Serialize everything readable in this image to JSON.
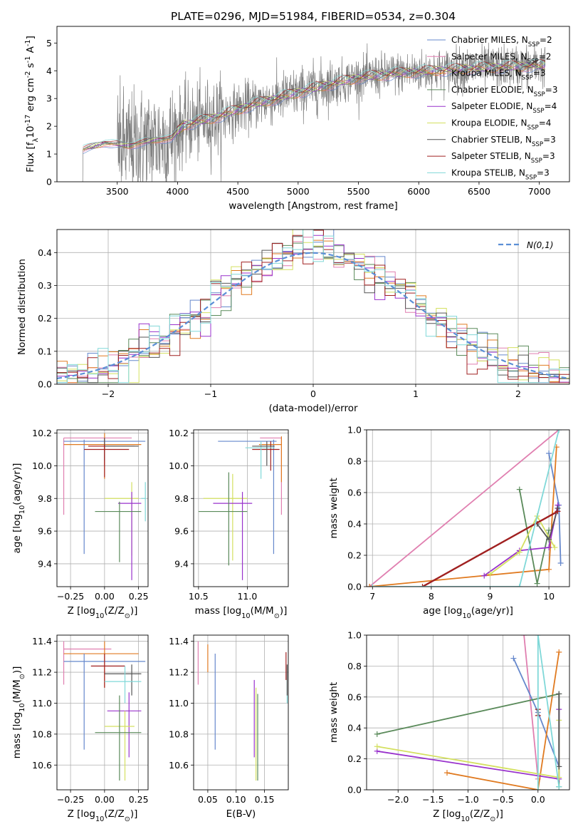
{
  "colors": {
    "C_MILES": "#6688cc",
    "S_MILES": "#e07fb0",
    "K_MILES": "#e07a20",
    "C_ELODIE": "#5a8a5a",
    "S_ELODIE": "#9932cc",
    "K_ELODIE": "#d4e060",
    "C_STELIB": "#555555",
    "S_STELIB": "#a02020",
    "K_STELIB": "#80d8d8",
    "data": "#7f7f7f",
    "normal": "#5b8fd6"
  },
  "chart_data": [
    {
      "id": "spectrum",
      "type": "line",
      "title": "PLATE=0296, MJD=51984, FIBERID=0534, z=0.304",
      "xlabel": "wavelength [Angstrom, rest frame]",
      "ylabel": "Flux [f$_\\lambda$10$^{-17}$ erg cm$^{-2}$ s$^{-1}$ A$^{-1}$]",
      "xlim": [
        3000,
        7250
      ],
      "ylim": [
        0,
        5.6
      ],
      "xticks": [
        3500,
        4000,
        4500,
        5000,
        5500,
        6000,
        6500,
        7000
      ],
      "yticks": [
        0,
        1,
        2,
        3,
        4,
        5
      ],
      "legend_position": "upper right",
      "series": [
        {
          "key": "C_MILES",
          "name": "Chabrier MILES, N$_{SSP}$=2"
        },
        {
          "key": "S_MILES",
          "name": "Salpeter MILES, N$_{SSP}$=2"
        },
        {
          "key": "K_MILES",
          "name": "Kroupa MILES, N$_{SSP}$=3"
        },
        {
          "key": "C_ELODIE",
          "name": "Chabrier ELODIE, N$_{SSP}$=3"
        },
        {
          "key": "S_ELODIE",
          "name": "Salpeter ELODIE, N$_{SSP}$=4"
        },
        {
          "key": "K_ELODIE",
          "name": "Kroupa ELODIE, N$_{SSP}$=4"
        },
        {
          "key": "C_STELIB",
          "name": "Chabrier STELIB, N$_{SSP}$=3"
        },
        {
          "key": "S_STELIB",
          "name": "Salpeter STELIB, N$_{SSP}$=3"
        },
        {
          "key": "K_STELIB",
          "name": "Kroupa STELIB, N$_{SSP}$=3"
        }
      ],
      "data_range": [
        3205,
        7050
      ],
      "continuum": [
        [
          3205,
          1.15
        ],
        [
          3400,
          1.4
        ],
        [
          3600,
          1.3
        ],
        [
          3800,
          1.5
        ],
        [
          3950,
          1.55
        ],
        [
          4050,
          2.05
        ],
        [
          4300,
          2.3
        ],
        [
          4600,
          2.75
        ],
        [
          4900,
          3.1
        ],
        [
          5200,
          3.45
        ],
        [
          5500,
          3.75
        ],
        [
          5800,
          3.9
        ],
        [
          6100,
          4.0
        ],
        [
          6500,
          4.1
        ],
        [
          7050,
          4.2
        ]
      ]
    },
    {
      "id": "residuals",
      "type": "histogram",
      "xlabel": "(data-model)/error",
      "ylabel": "Normed distribution",
      "xlim": [
        -2.5,
        2.5
      ],
      "ylim": [
        0,
        0.47
      ],
      "xticks": [
        -2,
        -1,
        0,
        1,
        2
      ],
      "yticks": [
        0.0,
        0.1,
        0.2,
        0.3,
        0.4
      ],
      "grid": true,
      "legend_position": "upper right",
      "legend": "$\\mathcal{N}(0,1)$",
      "bin_width": 0.1
    },
    {
      "id": "age_vs_Z",
      "type": "errorbar",
      "xlabel": "Z [log$_{10}$(Z/Z$_\\odot$)]",
      "ylabel": "age  [log$_{10}$(age/yr)]",
      "xlim": [
        -0.35,
        0.32
      ],
      "ylim": [
        9.26,
        10.22
      ],
      "xticks": [
        -0.25,
        0.0,
        0.25
      ],
      "yticks": [
        9.4,
        9.6,
        9.8,
        10.0,
        10.2
      ],
      "grid": true,
      "points": [
        {
          "key": "S_MILES",
          "x": -0.3,
          "y": 10.17,
          "xlo": -0.3,
          "xhi": 0.2,
          "ylo": 9.7,
          "yhi": 10.17
        },
        {
          "key": "C_MILES",
          "x": -0.15,
          "y": 10.15,
          "xlo": -0.3,
          "xhi": 0.3,
          "ylo": 9.46,
          "yhi": 10.16
        },
        {
          "key": "K_MILES",
          "x": 0.0,
          "y": 10.13,
          "xlo": -0.3,
          "xhi": 0.27,
          "ylo": 9.92,
          "yhi": 10.2
        },
        {
          "key": "S_STELIB",
          "x": 0.0,
          "y": 10.12,
          "xlo": -0.12,
          "xhi": 0.22,
          "ylo": 9.93,
          "yhi": 10.17
        },
        {
          "key": "C_STELIB",
          "x": 0.0,
          "y": 10.12,
          "xlo": 0.0,
          "xhi": 0.25,
          "ylo": 10.03,
          "yhi": 10.17
        },
        {
          "key": "S_STELIB",
          "x": 0.0,
          "y": 10.1,
          "xlo": -0.15,
          "xhi": 0.18,
          "ylo": 10.0,
          "yhi": 10.13
        },
        {
          "key": "K_ELODIE",
          "x": 0.2,
          "y": 9.8,
          "xlo": 0.0,
          "xhi": 0.25,
          "ylo": 9.45,
          "yhi": 9.9
        },
        {
          "key": "S_ELODIE",
          "x": 0.2,
          "y": 9.77,
          "xlo": 0.1,
          "xhi": 0.27,
          "ylo": 9.3,
          "yhi": 9.84
        },
        {
          "key": "C_ELODIE",
          "x": 0.11,
          "y": 9.72,
          "xlo": -0.07,
          "xhi": 0.27,
          "ylo": 9.41,
          "yhi": 9.78
        },
        {
          "key": "K_STELIB",
          "x": 0.3,
          "y": 9.8,
          "xlo": 0.27,
          "xhi": 0.3,
          "ylo": 9.66,
          "yhi": 9.9
        }
      ]
    },
    {
      "id": "age_vs_mass",
      "type": "errorbar",
      "xlabel": "mass [log$_{10}$(M/M$_\\odot$)]",
      "ylabel": "",
      "xlim": [
        10.45,
        11.42
      ],
      "ylim": [
        9.26,
        10.22
      ],
      "xticks": [
        10.5,
        11.0
      ],
      "yticks": [
        9.4,
        9.6,
        9.8,
        10.0,
        10.2
      ],
      "grid": true,
      "points": [
        {
          "key": "S_MILES",
          "x": 11.35,
          "y": 10.17,
          "xlo": 11.13,
          "xhi": 11.35,
          "ylo": 9.7,
          "yhi": 10.17
        },
        {
          "key": "C_MILES",
          "x": 11.27,
          "y": 10.15,
          "xlo": 10.7,
          "xhi": 11.3,
          "ylo": 9.46,
          "yhi": 10.16
        },
        {
          "key": "K_MILES",
          "x": 11.35,
          "y": 10.13,
          "xlo": 11.12,
          "xhi": 11.35,
          "ylo": 9.9,
          "yhi": 10.18
        },
        {
          "key": "S_STELIB",
          "x": 11.24,
          "y": 10.1,
          "xlo": 11.05,
          "xhi": 11.33,
          "ylo": 9.97,
          "yhi": 10.15
        },
        {
          "key": "K_STELIB",
          "x": 11.14,
          "y": 10.11,
          "xlo": 10.98,
          "xhi": 11.28,
          "ylo": 9.92,
          "yhi": 10.15
        },
        {
          "key": "C_STELIB",
          "x": 11.2,
          "y": 10.12,
          "xlo": 11.05,
          "xhi": 11.28,
          "ylo": 10.0,
          "yhi": 10.15
        },
        {
          "key": "K_ELODIE",
          "x": 10.85,
          "y": 9.8,
          "xlo": 10.55,
          "xhi": 11.0,
          "ylo": 9.42,
          "yhi": 9.95
        },
        {
          "key": "S_ELODIE",
          "x": 10.95,
          "y": 9.77,
          "xlo": 10.65,
          "xhi": 11.05,
          "ylo": 9.3,
          "yhi": 9.84
        },
        {
          "key": "C_ELODIE",
          "x": 10.81,
          "y": 9.72,
          "xlo": 10.5,
          "xhi": 11.0,
          "ylo": 9.39,
          "yhi": 9.96
        }
      ]
    },
    {
      "id": "massweight_vs_age",
      "type": "line",
      "xlabel": "age  [log$_{10}$(age/yr)]",
      "ylabel": "mass weight",
      "xlim": [
        6.9,
        10.35
      ],
      "ylim": [
        0,
        1.0
      ],
      "xticks": [
        7,
        8,
        9,
        10
      ],
      "yticks": [
        0.0,
        0.2,
        0.4,
        0.6,
        0.8,
        1.0
      ],
      "grid": true,
      "series": [
        {
          "key": "S_MILES",
          "x": [
            6.95,
            10.17
          ],
          "y": [
            0.0,
            1.0
          ]
        },
        {
          "key": "C_MILES",
          "x": [
            10.0,
            10.17,
            10.2
          ],
          "y": [
            0.85,
            0.52,
            0.15
          ]
        },
        {
          "key": "K_MILES",
          "x": [
            6.95,
            10.0,
            10.13
          ],
          "y": [
            0.0,
            0.11,
            0.89
          ]
        },
        {
          "key": "C_ELODIE",
          "x": [
            9.5,
            9.8,
            10.0
          ],
          "y": [
            0.62,
            0.02,
            0.36
          ]
        },
        {
          "key": "S_ELODIE",
          "x": [
            8.9,
            9.5,
            10.0,
            10.15
          ],
          "y": [
            0.07,
            0.23,
            0.25,
            0.52
          ]
        },
        {
          "key": "K_ELODIE",
          "x": [
            9.0,
            9.5,
            9.8,
            10.1
          ],
          "y": [
            0.08,
            0.22,
            0.45,
            0.25
          ]
        },
        {
          "key": "C_STELIB",
          "x": [
            9.8,
            10.0,
            10.15
          ],
          "y": [
            0.4,
            0.3,
            0.5
          ]
        },
        {
          "key": "S_STELIB",
          "x": [
            7.85,
            10.15
          ],
          "y": [
            0.0,
            0.48
          ]
        },
        {
          "key": "K_STELIB",
          "x": [
            7.0,
            9.5,
            10.17
          ],
          "y": [
            0.0,
            0.0,
            1.0
          ]
        }
      ]
    },
    {
      "id": "mass_vs_Z",
      "type": "errorbar",
      "xlabel": "Z [log$_{10}$(Z/Z$_\\odot$)]",
      "ylabel": "mass [log$_{10}$(M/M$_\\odot$)]",
      "xlim": [
        -0.35,
        0.32
      ],
      "ylim": [
        10.44,
        11.44
      ],
      "xticks": [
        -0.25,
        0.0,
        0.25
      ],
      "yticks": [
        10.6,
        10.8,
        11.0,
        11.2,
        11.4
      ],
      "grid": true,
      "points": [
        {
          "key": "S_MILES",
          "x": -0.3,
          "y": 11.35,
          "xlo": -0.3,
          "xhi": 0.05,
          "ylo": 11.12,
          "yhi": 11.4
        },
        {
          "key": "K_MILES",
          "x": 0.0,
          "y": 11.32,
          "xlo": -0.3,
          "xhi": 0.25,
          "ylo": 11.1,
          "yhi": 11.4
        },
        {
          "key": "C_MILES",
          "x": -0.15,
          "y": 11.27,
          "xlo": -0.3,
          "xhi": 0.3,
          "ylo": 10.7,
          "yhi": 11.32
        },
        {
          "key": "S_STELIB",
          "x": 0.0,
          "y": 11.24,
          "xlo": -0.1,
          "xhi": 0.15,
          "ylo": 11.1,
          "yhi": 11.32
        },
        {
          "key": "C_STELIB",
          "x": 0.2,
          "y": 11.19,
          "xlo": 0.0,
          "xhi": 0.27,
          "ylo": 11.05,
          "yhi": 11.25
        },
        {
          "key": "K_STELIB",
          "x": 0.15,
          "y": 11.14,
          "xlo": 0.0,
          "xhi": 0.27,
          "ylo": 11.0,
          "yhi": 11.24
        },
        {
          "key": "S_ELODIE",
          "x": 0.18,
          "y": 10.95,
          "xlo": 0.02,
          "xhi": 0.27,
          "ylo": 10.65,
          "yhi": 11.07
        },
        {
          "key": "K_ELODIE",
          "x": 0.15,
          "y": 10.85,
          "xlo": 0.0,
          "xhi": 0.22,
          "ylo": 10.5,
          "yhi": 10.95
        },
        {
          "key": "C_ELODIE",
          "x": 0.11,
          "y": 10.81,
          "xlo": -0.07,
          "xhi": 0.27,
          "ylo": 10.5,
          "yhi": 11.05
        }
      ]
    },
    {
      "id": "mass_vs_ebv",
      "type": "errorbar",
      "xlabel": "E(B-V)",
      "ylabel": "",
      "xlim": [
        0.025,
        0.192
      ],
      "ylim": [
        10.44,
        11.44
      ],
      "xticks": [
        0.05,
        0.1,
        0.15
      ],
      "yticks": [
        10.6,
        10.8,
        11.0,
        11.2,
        11.4
      ],
      "grid": true,
      "points": [
        {
          "key": "S_MILES",
          "x": 0.033,
          "y": 11.26,
          "xlo": 0.033,
          "xhi": 0.033,
          "ylo": 11.12,
          "yhi": 11.4
        },
        {
          "key": "K_MILES",
          "x": 0.05,
          "y": 11.3,
          "xlo": 0.05,
          "xhi": 0.05,
          "ylo": 11.2,
          "yhi": 11.38
        },
        {
          "key": "C_MILES",
          "x": 0.063,
          "y": 11.0,
          "xlo": 0.063,
          "xhi": 0.063,
          "ylo": 10.7,
          "yhi": 11.32
        },
        {
          "key": "S_ELODIE",
          "x": 0.132,
          "y": 10.9,
          "xlo": 0.132,
          "xhi": 0.132,
          "ylo": 10.65,
          "yhi": 11.15
        },
        {
          "key": "K_ELODIE",
          "x": 0.135,
          "y": 10.8,
          "xlo": 0.135,
          "xhi": 0.135,
          "ylo": 10.5,
          "yhi": 11.1
        },
        {
          "key": "C_ELODIE",
          "x": 0.138,
          "y": 10.8,
          "xlo": 0.138,
          "xhi": 0.138,
          "ylo": 10.5,
          "yhi": 11.06
        },
        {
          "key": "S_STELIB",
          "x": 0.188,
          "y": 11.24,
          "xlo": 0.188,
          "xhi": 0.188,
          "ylo": 11.15,
          "yhi": 11.33
        },
        {
          "key": "K_STELIB",
          "x": 0.19,
          "y": 11.1,
          "xlo": 0.19,
          "xhi": 0.19,
          "ylo": 11.0,
          "yhi": 11.24
        },
        {
          "key": "C_STELIB",
          "x": 0.19,
          "y": 11.15,
          "xlo": 0.19,
          "xhi": 0.19,
          "ylo": 11.05,
          "yhi": 11.25
        }
      ]
    },
    {
      "id": "massweight_vs_Z",
      "type": "line",
      "xlabel": "Z [log$_{10}$(Z/Z$_\\odot$)]",
      "ylabel": "mass weight",
      "xlim": [
        -2.45,
        0.45
      ],
      "ylim": [
        0,
        1.0
      ],
      "xticks": [
        -2.0,
        -1.5,
        -1.0,
        -0.5,
        0.0
      ],
      "yticks": [
        0.0,
        0.2,
        0.4,
        0.6,
        0.8,
        1.0
      ],
      "grid": true,
      "series": [
        {
          "key": "S_MILES",
          "x": [
            -0.2,
            0.0
          ],
          "y": [
            1.0,
            0.07
          ]
        },
        {
          "key": "C_MILES",
          "x": [
            -0.35,
            0.0,
            0.3
          ],
          "y": [
            0.85,
            0.5,
            0.15
          ]
        },
        {
          "key": "K_MILES",
          "x": [
            -1.3,
            0.0,
            0.3
          ],
          "y": [
            0.11,
            0.0,
            0.89
          ]
        },
        {
          "key": "C_ELODIE",
          "x": [
            -2.3,
            0.3,
            0.3
          ],
          "y": [
            0.36,
            0.62,
            0.02
          ]
        },
        {
          "key": "S_ELODIE",
          "x": [
            -2.3,
            0.3,
            0.3
          ],
          "y": [
            0.25,
            0.07,
            0.52
          ]
        },
        {
          "key": "K_ELODIE",
          "x": [
            -2.3,
            0.3,
            0.3
          ],
          "y": [
            0.28,
            0.08,
            0.45
          ]
        },
        {
          "key": "C_STELIB",
          "x": [
            0.3,
            0.3
          ],
          "y": [
            0.15,
            0.62
          ]
        },
        {
          "key": "S_STELIB",
          "x": [
            0.0,
            0.0
          ],
          "y": [
            0.48,
            0.52
          ]
        },
        {
          "key": "K_STELIB",
          "x": [
            0.0,
            0.0,
            0.3
          ],
          "y": [
            0.0,
            1.0,
            0.02
          ]
        }
      ]
    }
  ]
}
